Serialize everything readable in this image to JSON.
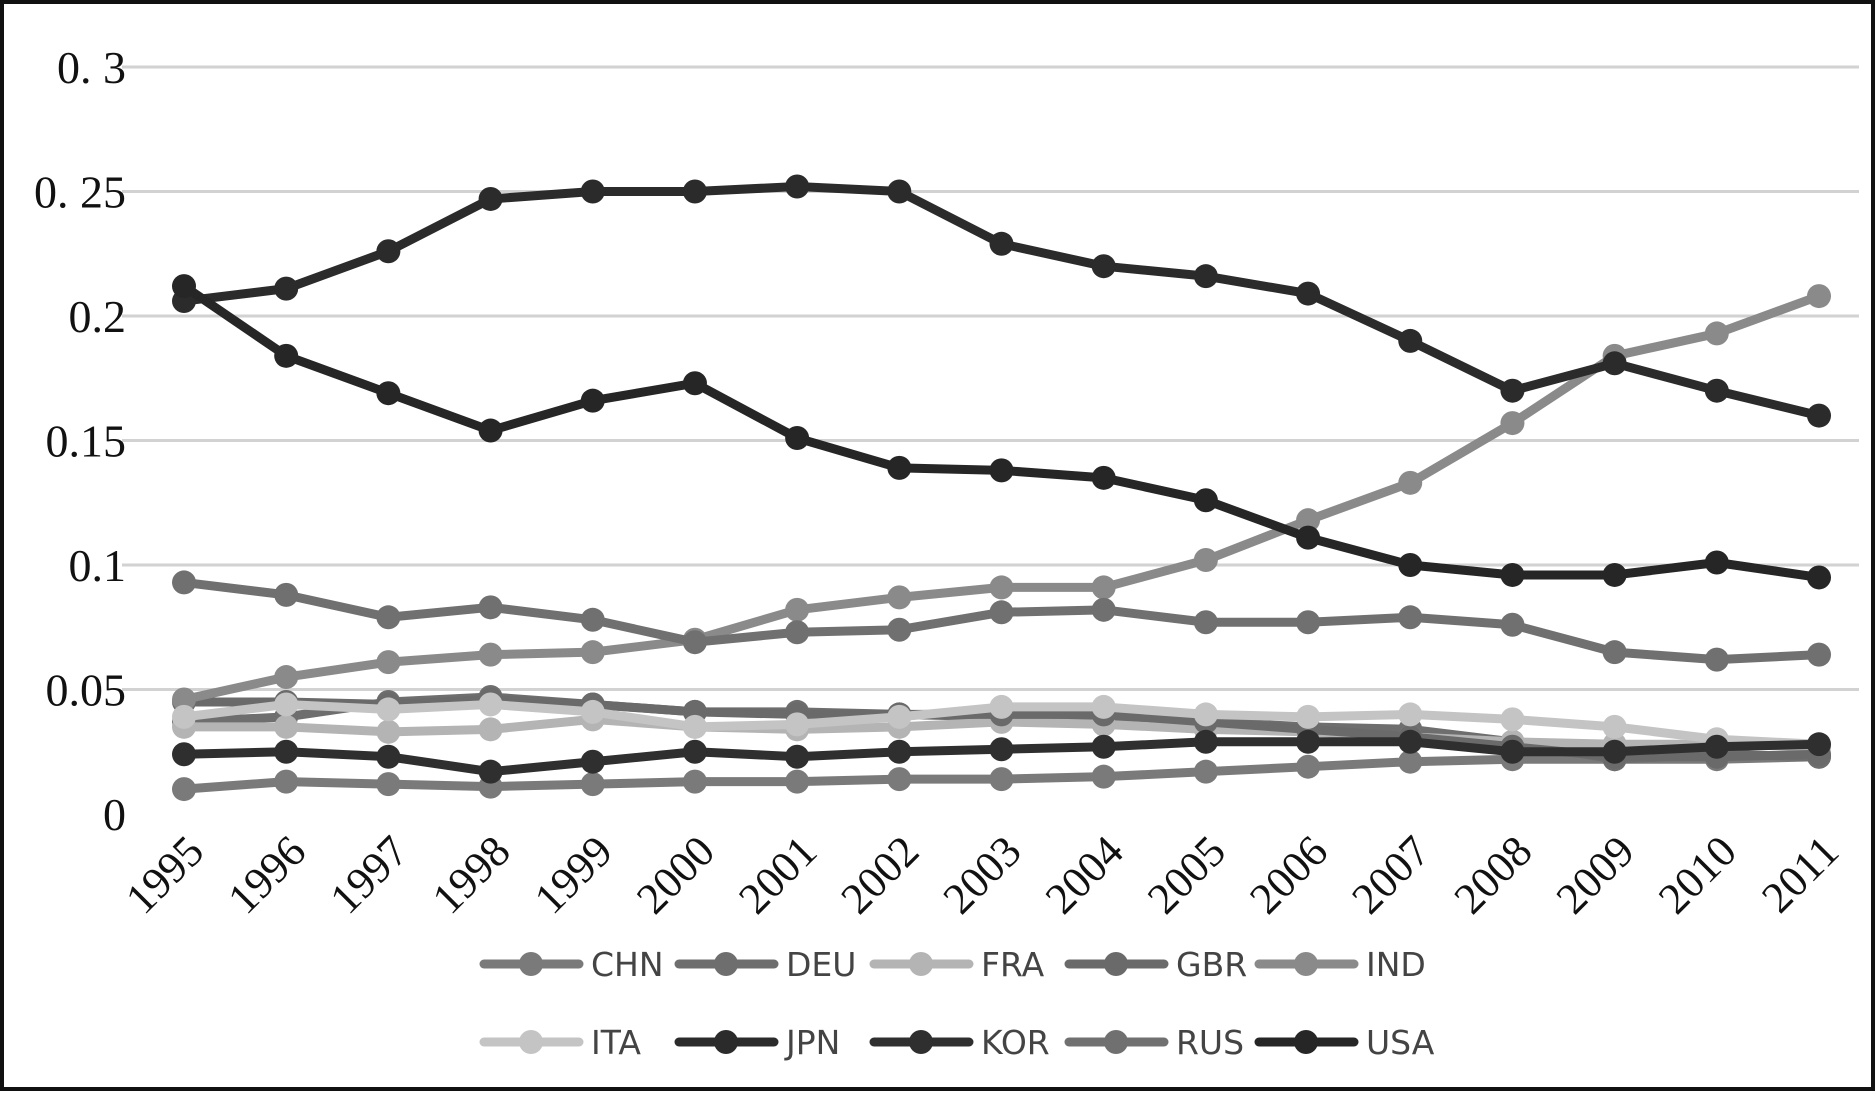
{
  "chart_data": {
    "type": "line",
    "title": "",
    "xlabel": "",
    "ylabel": "",
    "x": [
      "1995",
      "1996",
      "1997",
      "1998",
      "1999",
      "2000",
      "2001",
      "2002",
      "2003",
      "2004",
      "2005",
      "2006",
      "2007",
      "2008",
      "2009",
      "2010",
      "2011"
    ],
    "ylim": [
      0,
      0.3
    ],
    "yticks": [
      0,
      0.05,
      0.1,
      0.15,
      0.2,
      0.25,
      0.3
    ],
    "ytick_labels": [
      "0",
      "0.05",
      "0.1",
      "0.15",
      "0.2",
      "0. 25",
      "0. 3"
    ],
    "grid": "horizontal",
    "legend_position": "bottom",
    "series": [
      {
        "name": "CHN",
        "color": "#7a7a7a",
        "values": [
          0.01,
          0.013,
          0.012,
          0.011,
          0.012,
          0.013,
          0.013,
          0.014,
          0.014,
          0.015,
          0.017,
          0.019,
          0.021,
          0.022,
          0.022,
          0.022,
          0.023
        ]
      },
      {
        "name": "DEU",
        "color": "#6e6e6e",
        "values": [
          0.037,
          0.039,
          0.045,
          0.047,
          0.044,
          0.041,
          0.041,
          0.04,
          0.039,
          0.039,
          0.037,
          0.035,
          0.034,
          0.029,
          0.022,
          0.024,
          0.023
        ]
      },
      {
        "name": "FRA",
        "color": "#b4b4b4",
        "values": [
          0.035,
          0.035,
          0.033,
          0.034,
          0.038,
          0.035,
          0.034,
          0.035,
          0.037,
          0.036,
          0.034,
          0.033,
          0.031,
          0.029,
          0.028,
          0.028,
          0.027
        ]
      },
      {
        "name": "GBR",
        "color": "#6a6a6a",
        "values": [
          0.045,
          0.045,
          0.044,
          0.046,
          0.044,
          0.041,
          0.04,
          0.04,
          0.04,
          0.04,
          0.037,
          0.034,
          0.031,
          0.027,
          0.023,
          0.023,
          0.024
        ]
      },
      {
        "name": "IND",
        "color": "#8a8a8a",
        "values": [
          0.046,
          0.055,
          0.061,
          0.064,
          0.065,
          0.07,
          0.082,
          0.087,
          0.091,
          0.091,
          0.102,
          0.118,
          0.133,
          0.157,
          0.184,
          0.193,
          0.208
        ]
      },
      {
        "name": "ITA",
        "color": "#c4c4c4",
        "values": [
          0.039,
          0.044,
          0.042,
          0.044,
          0.041,
          0.035,
          0.036,
          0.039,
          0.043,
          0.043,
          0.04,
          0.039,
          0.04,
          0.038,
          0.035,
          0.03,
          0.028
        ]
      },
      {
        "name": "JPN",
        "color": "#2b2b2b",
        "values": [
          0.206,
          0.211,
          0.226,
          0.247,
          0.25,
          0.25,
          0.252,
          0.25,
          0.229,
          0.22,
          0.216,
          0.209,
          0.19,
          0.17,
          0.181,
          0.17,
          0.16
        ]
      },
      {
        "name": "KOR",
        "color": "#2f2f2f",
        "values": [
          0.024,
          0.025,
          0.023,
          0.017,
          0.021,
          0.025,
          0.023,
          0.025,
          0.026,
          0.027,
          0.029,
          0.029,
          0.029,
          0.025,
          0.025,
          0.027,
          0.028
        ]
      },
      {
        "name": "RUS",
        "color": "#707070",
        "values": [
          0.093,
          0.088,
          0.079,
          0.083,
          0.078,
          0.069,
          0.073,
          0.074,
          0.081,
          0.082,
          0.077,
          0.077,
          0.079,
          0.076,
          0.065,
          0.062,
          0.064
        ]
      },
      {
        "name": "USA",
        "color": "#262626",
        "values": [
          0.212,
          0.184,
          0.169,
          0.154,
          0.166,
          0.173,
          0.151,
          0.139,
          0.138,
          0.135,
          0.126,
          0.111,
          0.1,
          0.096,
          0.096,
          0.101,
          0.095
        ]
      }
    ]
  }
}
